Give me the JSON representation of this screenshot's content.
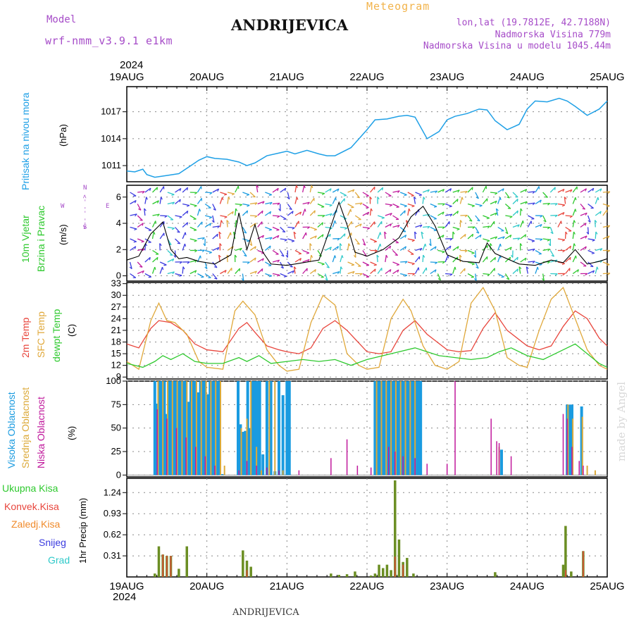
{
  "header": {
    "model_label": "Model",
    "model_name": "wrf-nmm_v3.9.1  e1km",
    "title": "Meteogram",
    "station": "ANDRIJEVICA",
    "coords": "lon,lat (19.7812E, 42.7188N)",
    "elevation": "Nadmorska Visina 779m",
    "model_elevation": "Nadmorska Visina u modelu 1045.44m",
    "year": "2024",
    "watermark": "made by Angel",
    "station_bottom": "ANDRIJEVICA"
  },
  "colors": {
    "pressure": "#1fa0e6",
    "temp2m": "#e8453c",
    "sfc": "#e0a83a",
    "dewpt": "#2ec92e",
    "high_cloud": "#1a9be0",
    "mid_cloud": "#dcaa3a",
    "low_cloud": "#c0199c",
    "total_precip": "#6b8e23",
    "title_orange": "#f2b34a",
    "purple": "#a64cc8"
  },
  "panel_labels": {
    "pressure": {
      "name": "Pritisak na nivou mora",
      "unit": "(hPa)"
    },
    "wind": {
      "name1": "10m Vjetar",
      "name2": "Brzina i Pravac",
      "unit": "(m/s)",
      "compass_n": "N",
      "compass_w": "W",
      "compass_e": "E",
      "compass_s": "S",
      "compass_arrows": "<-- -- ->"
    },
    "temp": {
      "t2m": "2m Temp",
      "sfc": "SFC Temp",
      "dew": "dewpt Temp",
      "unit": "(C)"
    },
    "cloud": {
      "high": "Visoka Oblacnost",
      "mid": "Srednja Oblacnost",
      "low": "Niska Oblacnost",
      "unit": "(%)"
    },
    "precip": {
      "total": "Ukupna Kisa",
      "conv": "Konvek.Kisa",
      "frozen": "Zaledj.Kisa",
      "snow": "Snijeg",
      "grad": "Grad",
      "unit": "1hr Precip (mm)"
    }
  },
  "chart_data": [
    {
      "type": "line",
      "name": "pressure",
      "x_labels": [
        "19AUG",
        "20AUG",
        "21AUG",
        "22AUG",
        "23AUG",
        "24AUG",
        "25AUG"
      ],
      "yticks": [
        "1011",
        "1014",
        "1017"
      ],
      "ylim": [
        1009.2,
        1019.8
      ],
      "series": [
        {
          "name": "Pritisak na nivou mora",
          "x": [
            0,
            0.1,
            0.2,
            0.25,
            0.35,
            0.5,
            0.65,
            0.8,
            0.9,
            1.0,
            1.1,
            1.25,
            1.4,
            1.5,
            1.6,
            1.75,
            1.9,
            2.0,
            2.1,
            2.25,
            2.4,
            2.5,
            2.6,
            2.8,
            3.0,
            3.1,
            3.25,
            3.4,
            3.5,
            3.6,
            3.75,
            3.9,
            4.0,
            4.1,
            4.25,
            4.4,
            4.5,
            4.6,
            4.75,
            4.9,
            5.0,
            5.1,
            5.25,
            5.4,
            5.5,
            5.6,
            5.75,
            5.9,
            6.0
          ],
          "values": [
            1010.4,
            1010.3,
            1010.6,
            1010.0,
            1009.7,
            1009.9,
            1010.1,
            1011.0,
            1011.6,
            1012.0,
            1011.8,
            1011.7,
            1011.4,
            1011.0,
            1011.3,
            1012.1,
            1012.4,
            1012.6,
            1012.3,
            1012.7,
            1012.3,
            1012.1,
            1012.1,
            1013.0,
            1015.0,
            1016.1,
            1016.2,
            1016.5,
            1016.6,
            1016.4,
            1014.0,
            1014.8,
            1016.1,
            1016.5,
            1016.8,
            1017.3,
            1017.2,
            1016.0,
            1015.0,
            1015.6,
            1017.3,
            1018.2,
            1018.1,
            1018.5,
            1018.2,
            1017.6,
            1016.6,
            1017.3,
            1018.2
          ]
        }
      ]
    },
    {
      "type": "line",
      "name": "wind",
      "yticks": [
        "0",
        "2",
        "4",
        "6"
      ],
      "ylim": [
        -0.4,
        6.9
      ],
      "series": [
        {
          "name": "Brzina",
          "x": [
            0,
            0.15,
            0.3,
            0.45,
            0.55,
            0.65,
            0.75,
            0.9,
            1.1,
            1.3,
            1.4,
            1.5,
            1.6,
            1.7,
            1.8,
            2.0,
            2.2,
            2.4,
            2.55,
            2.65,
            2.75,
            2.85,
            3.0,
            3.2,
            3.4,
            3.55,
            3.7,
            3.85,
            4.0,
            4.2,
            4.4,
            4.5,
            4.6,
            4.75,
            4.9,
            5.1,
            5.3,
            5.45,
            5.6,
            5.75,
            5.9,
            6.0
          ],
          "values": [
            1.2,
            1.5,
            3.2,
            4.1,
            2.0,
            1.3,
            1.4,
            1.1,
            0.9,
            1.6,
            4.8,
            2.0,
            3.9,
            1.8,
            0.9,
            0.8,
            1.0,
            1.2,
            3.8,
            5.6,
            3.9,
            1.8,
            1.5,
            2.0,
            2.9,
            4.5,
            5.3,
            3.8,
            1.6,
            1.1,
            1.0,
            2.5,
            1.7,
            1.3,
            0.9,
            0.8,
            1.2,
            1.0,
            2.0,
            0.9,
            1.1,
            1.3
          ]
        }
      ]
    },
    {
      "type": "line",
      "name": "temperature",
      "yticks": [
        "9",
        "12",
        "15",
        "18",
        "21",
        "24",
        "27",
        "30",
        "33"
      ],
      "ylim": [
        8.5,
        33.3
      ],
      "series": [
        {
          "name": "2m Temp",
          "x": [
            0,
            0.15,
            0.3,
            0.4,
            0.55,
            0.7,
            0.85,
            1.0,
            1.2,
            1.4,
            1.5,
            1.6,
            1.75,
            1.9,
            2.0,
            2.15,
            2.3,
            2.45,
            2.6,
            2.75,
            3.0,
            3.15,
            3.3,
            3.45,
            3.6,
            3.75,
            4.0,
            4.15,
            4.3,
            4.45,
            4.6,
            4.75,
            5.0,
            5.15,
            5.3,
            5.45,
            5.6,
            5.75,
            5.9,
            6.0
          ],
          "values": [
            17.5,
            16.5,
            21.5,
            23.5,
            23.0,
            21.0,
            17.5,
            16.0,
            15.5,
            21.5,
            23.0,
            20.5,
            17.0,
            16.0,
            15.5,
            15.0,
            16.5,
            21.5,
            23.5,
            21.0,
            15.5,
            15.0,
            15.5,
            21.0,
            23.5,
            20.0,
            16.0,
            15.5,
            15.8,
            21.5,
            25.5,
            21.0,
            17.0,
            16.0,
            17.0,
            22.0,
            26.0,
            24.0,
            19.0,
            17.0
          ]
        },
        {
          "name": "SFC Temp",
          "x": [
            0,
            0.15,
            0.3,
            0.4,
            0.5,
            0.6,
            0.75,
            0.9,
            1.0,
            1.2,
            1.35,
            1.45,
            1.6,
            1.75,
            1.9,
            2.0,
            2.15,
            2.3,
            2.45,
            2.6,
            2.75,
            2.9,
            3.0,
            3.15,
            3.3,
            3.45,
            3.55,
            3.7,
            3.85,
            4.0,
            4.15,
            4.3,
            4.45,
            4.6,
            4.75,
            4.9,
            5.0,
            5.15,
            5.3,
            5.45,
            5.6,
            5.75,
            5.9,
            6.0
          ],
          "values": [
            13.0,
            11.0,
            23.5,
            28.0,
            23.5,
            23.0,
            20.0,
            13.0,
            11.5,
            11.0,
            26.0,
            28.5,
            25.0,
            16.0,
            12.0,
            10.5,
            11.0,
            23.0,
            30.0,
            27.5,
            15.0,
            12.0,
            11.0,
            11.5,
            24.0,
            29.0,
            26.0,
            17.0,
            12.0,
            11.0,
            13.0,
            28.0,
            32.0,
            26.0,
            14.0,
            12.0,
            11.5,
            21.0,
            29.0,
            32.0,
            24.0,
            16.0,
            12.0,
            11.0
          ]
        },
        {
          "name": "dewpt Temp",
          "x": [
            0,
            0.2,
            0.35,
            0.45,
            0.55,
            0.7,
            0.85,
            1.0,
            1.2,
            1.4,
            1.5,
            1.65,
            1.8,
            2.0,
            2.2,
            2.4,
            2.6,
            2.8,
            3.0,
            3.2,
            3.4,
            3.6,
            3.75,
            3.9,
            4.1,
            4.3,
            4.5,
            4.65,
            4.8,
            5.0,
            5.2,
            5.45,
            5.6,
            5.75,
            5.9,
            6.0
          ],
          "values": [
            12.5,
            11.5,
            13.0,
            14.5,
            13.5,
            15.0,
            13.0,
            12.5,
            12.5,
            14.0,
            13.0,
            14.5,
            12.5,
            13.0,
            13.5,
            13.0,
            13.5,
            12.0,
            13.5,
            14.5,
            15.5,
            16.5,
            15.5,
            14.5,
            14.0,
            13.5,
            14.0,
            15.5,
            16.5,
            14.5,
            13.5,
            16.0,
            17.5,
            15.0,
            12.5,
            11.5
          ]
        }
      ]
    },
    {
      "type": "bar",
      "name": "cloud",
      "yticks": [
        "0",
        "25",
        "50",
        "75",
        "100"
      ],
      "ylim": [
        -2,
        100
      ],
      "series": [
        {
          "name": "Visoka Oblacnost",
          "x": [
            0.35,
            0.38,
            0.41,
            0.44,
            0.47,
            0.5,
            0.53,
            0.56,
            0.59,
            0.62,
            0.65,
            0.68,
            0.71,
            0.74,
            0.77,
            0.8,
            0.83,
            0.86,
            0.89,
            0.92,
            0.95,
            0.98,
            1.01,
            1.04,
            1.07,
            1.1,
            1.13,
            1.16,
            1.19,
            1.39,
            1.42,
            1.45,
            1.48,
            1.51,
            1.54,
            1.57,
            1.6,
            1.63,
            1.66,
            1.7,
            1.75,
            1.8,
            1.85,
            1.9,
            1.95,
            2.0,
            2.03,
            3.1,
            3.13,
            3.16,
            3.19,
            3.22,
            3.25,
            3.28,
            3.31,
            3.34,
            3.37,
            3.4,
            3.43,
            3.46,
            3.49,
            3.52,
            3.55,
            3.58,
            3.61,
            3.64,
            3.67,
            4.68,
            5.5,
            5.53,
            5.56,
            5.68
          ],
          "values": [
            100,
            76,
            100,
            100,
            100,
            65,
            100,
            100,
            100,
            100,
            100,
            100,
            100,
            100,
            78,
            100,
            100,
            100,
            88,
            100,
            100,
            100,
            86,
            100,
            100,
            100,
            100,
            100,
            1,
            100,
            54,
            46,
            47,
            100,
            50,
            100,
            100,
            100,
            100,
            22,
            100,
            100,
            4,
            100,
            85,
            100,
            100,
            100,
            100,
            100,
            100,
            100,
            100,
            100,
            100,
            100,
            100,
            100,
            100,
            100,
            100,
            100,
            100,
            100,
            100,
            100,
            100,
            27,
            75,
            75,
            75,
            73
          ]
        },
        {
          "name": "Srednja Oblacnost",
          "x": [
            0.39,
            0.45,
            0.51,
            0.57,
            0.63,
            0.69,
            0.75,
            0.81,
            0.87,
            0.93,
            0.99,
            1.05,
            1.11,
            1.17,
            1.22,
            1.43,
            1.5,
            1.55,
            1.62,
            1.68,
            1.78,
            1.85,
            1.95,
            3.12,
            3.18,
            3.24,
            3.3,
            3.36,
            3.42,
            3.48,
            3.54,
            3.6,
            4.65,
            5.51,
            5.57,
            5.69,
            5.75,
            5.85
          ],
          "values": [
            100,
            100,
            100,
            100,
            100,
            100,
            100,
            100,
            100,
            100,
            100,
            100,
            100,
            100,
            10,
            50,
            60,
            100,
            30,
            5,
            100,
            100,
            5,
            100,
            100,
            100,
            100,
            100,
            100,
            100,
            100,
            100,
            30,
            75,
            60,
            62,
            10,
            5
          ]
        },
        {
          "name": "Niska Oblacnost",
          "x": [
            0.38,
            0.5,
            0.62,
            0.74,
            0.86,
            0.98,
            1.1,
            1.4,
            1.5,
            1.62,
            1.75,
            1.9,
            2.15,
            2.55,
            2.75,
            2.88,
            3.05,
            3.27,
            3.35,
            3.45,
            3.6,
            3.75,
            4.0,
            4.1,
            4.55,
            4.62,
            4.65,
            4.8,
            5.45,
            5.5,
            5.56,
            5.65,
            5.7
          ],
          "values": [
            70,
            60,
            50,
            40,
            30,
            20,
            10,
            5,
            15,
            10,
            8,
            5,
            5,
            18,
            38,
            10,
            8,
            30,
            25,
            20,
            18,
            12,
            12,
            100,
            60,
            36,
            34,
            20,
            65,
            60,
            30,
            15,
            10
          ]
        }
      ]
    },
    {
      "type": "bar",
      "name": "precipitation",
      "yticks": [
        "0.31",
        "0.62",
        "0.93",
        "1.24"
      ],
      "ylim": [
        0,
        1.45
      ],
      "series": [
        {
          "name": "Ukupna Kisa",
          "x": [
            0.35,
            0.4,
            0.45,
            0.5,
            0.55,
            0.65,
            0.75,
            1.45,
            1.5,
            1.55,
            2.55,
            2.65,
            2.75,
            2.85,
            3.05,
            3.1,
            3.15,
            3.2,
            3.25,
            3.3,
            3.35,
            3.4,
            3.45,
            3.5,
            3.58,
            4.6,
            5.45,
            5.48,
            5.55,
            5.7
          ],
          "values": [
            0.05,
            0.45,
            0.33,
            0.31,
            0.31,
            0.12,
            0.45,
            0.39,
            0.24,
            0.15,
            0.05,
            0.03,
            0.04,
            0.08,
            0.02,
            0.05,
            0.18,
            0.13,
            0.18,
            0.1,
            1.42,
            0.55,
            0.22,
            0.28,
            0.05,
            0.07,
            0.18,
            0.75,
            0.08,
            0.38
          ]
        },
        {
          "name": "Konvek.Kisa",
          "x": [
            0.45,
            0.5,
            0.55,
            1.5,
            3.35,
            3.45,
            5.48,
            5.7
          ],
          "values": [
            0.33,
            0.31,
            0.31,
            0.1,
            0.3,
            0.18,
            0.1,
            0.38
          ]
        }
      ]
    }
  ]
}
